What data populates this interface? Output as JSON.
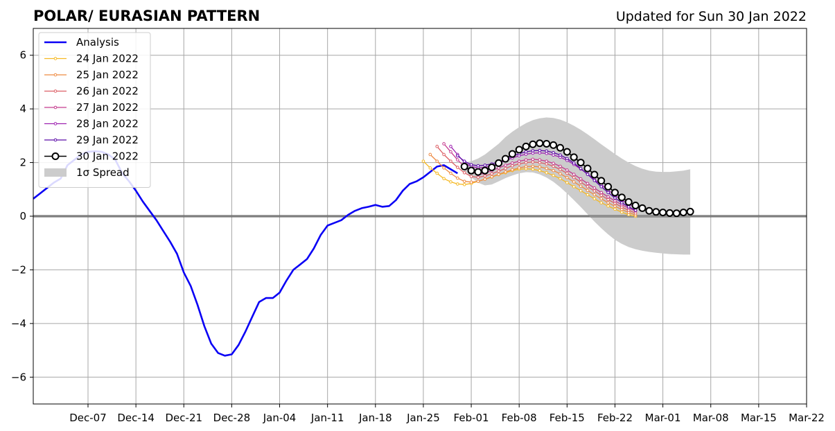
{
  "chart_data": {
    "type": "line",
    "title": "POLAR/ EURASIAN  PATTERN",
    "subtitle": "Updated for Sun 30 Jan 2022",
    "xlabel": "",
    "ylabel": "",
    "xlim": [
      "2021-11-29",
      "2022-03-22"
    ],
    "ylim": [
      -7,
      7
    ],
    "yticks": [
      -6,
      -4,
      -2,
      0,
      2,
      4,
      6
    ],
    "yticklabels": [
      "−6",
      "−4",
      "−2",
      "0",
      "2",
      "4",
      "6"
    ],
    "xticks": [
      "2021-12-07",
      "2021-12-14",
      "2021-12-21",
      "2021-12-28",
      "2022-01-04",
      "2022-01-11",
      "2022-01-18",
      "2022-01-25",
      "2022-02-01",
      "2022-02-08",
      "2022-02-15",
      "2022-02-22",
      "2022-03-01",
      "2022-03-08",
      "2022-03-15",
      "2022-03-22"
    ],
    "xticklabels": [
      "Dec-07",
      "Dec-14",
      "Dec-21",
      "Dec-28",
      "Jan-04",
      "Jan-11",
      "Jan-18",
      "Jan-25",
      "Feb-01",
      "Feb-08",
      "Feb-15",
      "Feb-22",
      "Mar-01",
      "Mar-08",
      "Mar-15",
      "Mar-22"
    ],
    "grid": true,
    "legend_position": "top-left",
    "analysis": {
      "name": "Analysis",
      "color": "#0a00f5",
      "start": "2021-11-29",
      "values": [
        0.65,
        0.85,
        1.05,
        1.25,
        1.4,
        1.9,
        2.1,
        2.3,
        2.4,
        2.42,
        2.4,
        2.3,
        2.1,
        1.6,
        1.3,
        0.95,
        0.55,
        0.2,
        -0.15,
        -0.55,
        -0.95,
        -1.4,
        -2.1,
        -2.6,
        -3.3,
        -4.1,
        -4.75,
        -5.1,
        -5.2,
        -5.15,
        -4.8,
        -4.3,
        -3.75,
        -3.2,
        -3.05,
        -3.05,
        -2.85,
        -2.4,
        -2.0,
        -1.8,
        -1.6,
        -1.2,
        -0.7,
        -0.35,
        -0.25,
        -0.15,
        0.05,
        0.2,
        0.3,
        0.35,
        0.42,
        0.35,
        0.38,
        0.6,
        0.95,
        1.2,
        1.3,
        1.45,
        1.65,
        1.85,
        1.9,
        1.75,
        1.6
      ]
    },
    "forecasts": [
      {
        "name": "24 Jan 2022",
        "color": "#f5b822",
        "start": "2022-01-25",
        "values": [
          2.05,
          1.8,
          1.6,
          1.4,
          1.28,
          1.2,
          1.18,
          1.22,
          1.3,
          1.38,
          1.46,
          1.55,
          1.62,
          1.7,
          1.75,
          1.77,
          1.75,
          1.7,
          1.62,
          1.52,
          1.4,
          1.25,
          1.1,
          0.95,
          0.8,
          0.65,
          0.5,
          0.38,
          0.26,
          0.15,
          0.06,
          0.0
        ]
      },
      {
        "name": "25 Jan 2022",
        "color": "#ee8a42",
        "start": "2022-01-26",
        "values": [
          2.3,
          2.05,
          1.8,
          1.6,
          1.42,
          1.3,
          1.27,
          1.3,
          1.38,
          1.47,
          1.56,
          1.65,
          1.73,
          1.8,
          1.85,
          1.86,
          1.84,
          1.78,
          1.7,
          1.58,
          1.44,
          1.28,
          1.12,
          0.96,
          0.8,
          0.65,
          0.5,
          0.37,
          0.25,
          0.14,
          0.05
        ]
      },
      {
        "name": "26 Jan 2022",
        "color": "#dc5e64",
        "start": "2022-01-27",
        "values": [
          2.6,
          2.3,
          2.05,
          1.82,
          1.62,
          1.48,
          1.45,
          1.5,
          1.58,
          1.68,
          1.78,
          1.88,
          1.95,
          2.0,
          2.02,
          2.0,
          1.95,
          1.86,
          1.74,
          1.6,
          1.44,
          1.27,
          1.1,
          0.94,
          0.78,
          0.62,
          0.48,
          0.34,
          0.22,
          0.12
        ]
      },
      {
        "name": "27 Jan 2022",
        "color": "#c53a8e",
        "start": "2022-01-28",
        "values": [
          2.7,
          2.4,
          2.1,
          1.85,
          1.65,
          1.55,
          1.6,
          1.7,
          1.8,
          1.9,
          1.98,
          2.05,
          2.1,
          2.12,
          2.1,
          2.05,
          1.97,
          1.86,
          1.72,
          1.56,
          1.39,
          1.22,
          1.05,
          0.88,
          0.72,
          0.57,
          0.43,
          0.3,
          0.2
        ]
      },
      {
        "name": "28 Jan 2022",
        "color": "#9d20b0",
        "start": "2022-01-29",
        "values": [
          2.6,
          2.3,
          2.0,
          1.85,
          1.8,
          1.82,
          1.88,
          1.97,
          2.07,
          2.17,
          2.25,
          2.31,
          2.35,
          2.36,
          2.34,
          2.28,
          2.2,
          2.08,
          1.93,
          1.76,
          1.57,
          1.37,
          1.17,
          0.97,
          0.78,
          0.6,
          0.45,
          0.32
        ]
      },
      {
        "name": "29 Jan 2022",
        "color": "#5b0aa8",
        "start": "2022-01-30",
        "values": [
          2.25,
          2.05,
          1.92,
          1.88,
          1.9,
          1.95,
          2.02,
          2.12,
          2.23,
          2.33,
          2.4,
          2.44,
          2.45,
          2.43,
          2.37,
          2.28,
          2.15,
          1.98,
          1.78,
          1.56,
          1.33,
          1.1,
          0.88,
          0.68,
          0.5,
          0.35,
          0.22
        ]
      },
      {
        "name": "30 Jan 2022",
        "color": "#000000",
        "start": "2022-01-31",
        "marker": "open-circle",
        "values": [
          1.85,
          1.7,
          1.65,
          1.7,
          1.82,
          1.98,
          2.14,
          2.32,
          2.48,
          2.6,
          2.68,
          2.72,
          2.7,
          2.65,
          2.55,
          2.4,
          2.2,
          2.0,
          1.78,
          1.55,
          1.32,
          1.1,
          0.88,
          0.7,
          0.53,
          0.4,
          0.3,
          0.2,
          0.16,
          0.14,
          0.12,
          0.11,
          0.14,
          0.17
        ]
      }
    ],
    "spread": {
      "name": "1σ Spread",
      "color": "#cccccc",
      "start": "2022-01-31",
      "upper": [
        2.0,
        2.05,
        2.15,
        2.3,
        2.5,
        2.7,
        2.95,
        3.15,
        3.32,
        3.47,
        3.58,
        3.65,
        3.68,
        3.66,
        3.6,
        3.5,
        3.37,
        3.22,
        3.05,
        2.87,
        2.68,
        2.5,
        2.32,
        2.15,
        2.0,
        1.87,
        1.77,
        1.7,
        1.66,
        1.65,
        1.65,
        1.67,
        1.7,
        1.75
      ],
      "lower": [
        1.7,
        1.45,
        1.25,
        1.15,
        1.18,
        1.3,
        1.42,
        1.52,
        1.6,
        1.64,
        1.63,
        1.56,
        1.44,
        1.28,
        1.08,
        0.85,
        0.6,
        0.34,
        0.07,
        -0.2,
        -0.45,
        -0.68,
        -0.88,
        -1.03,
        -1.15,
        -1.23,
        -1.29,
        -1.33,
        -1.36,
        -1.39,
        -1.41,
        -1.42,
        -1.43,
        -1.43
      ]
    }
  }
}
